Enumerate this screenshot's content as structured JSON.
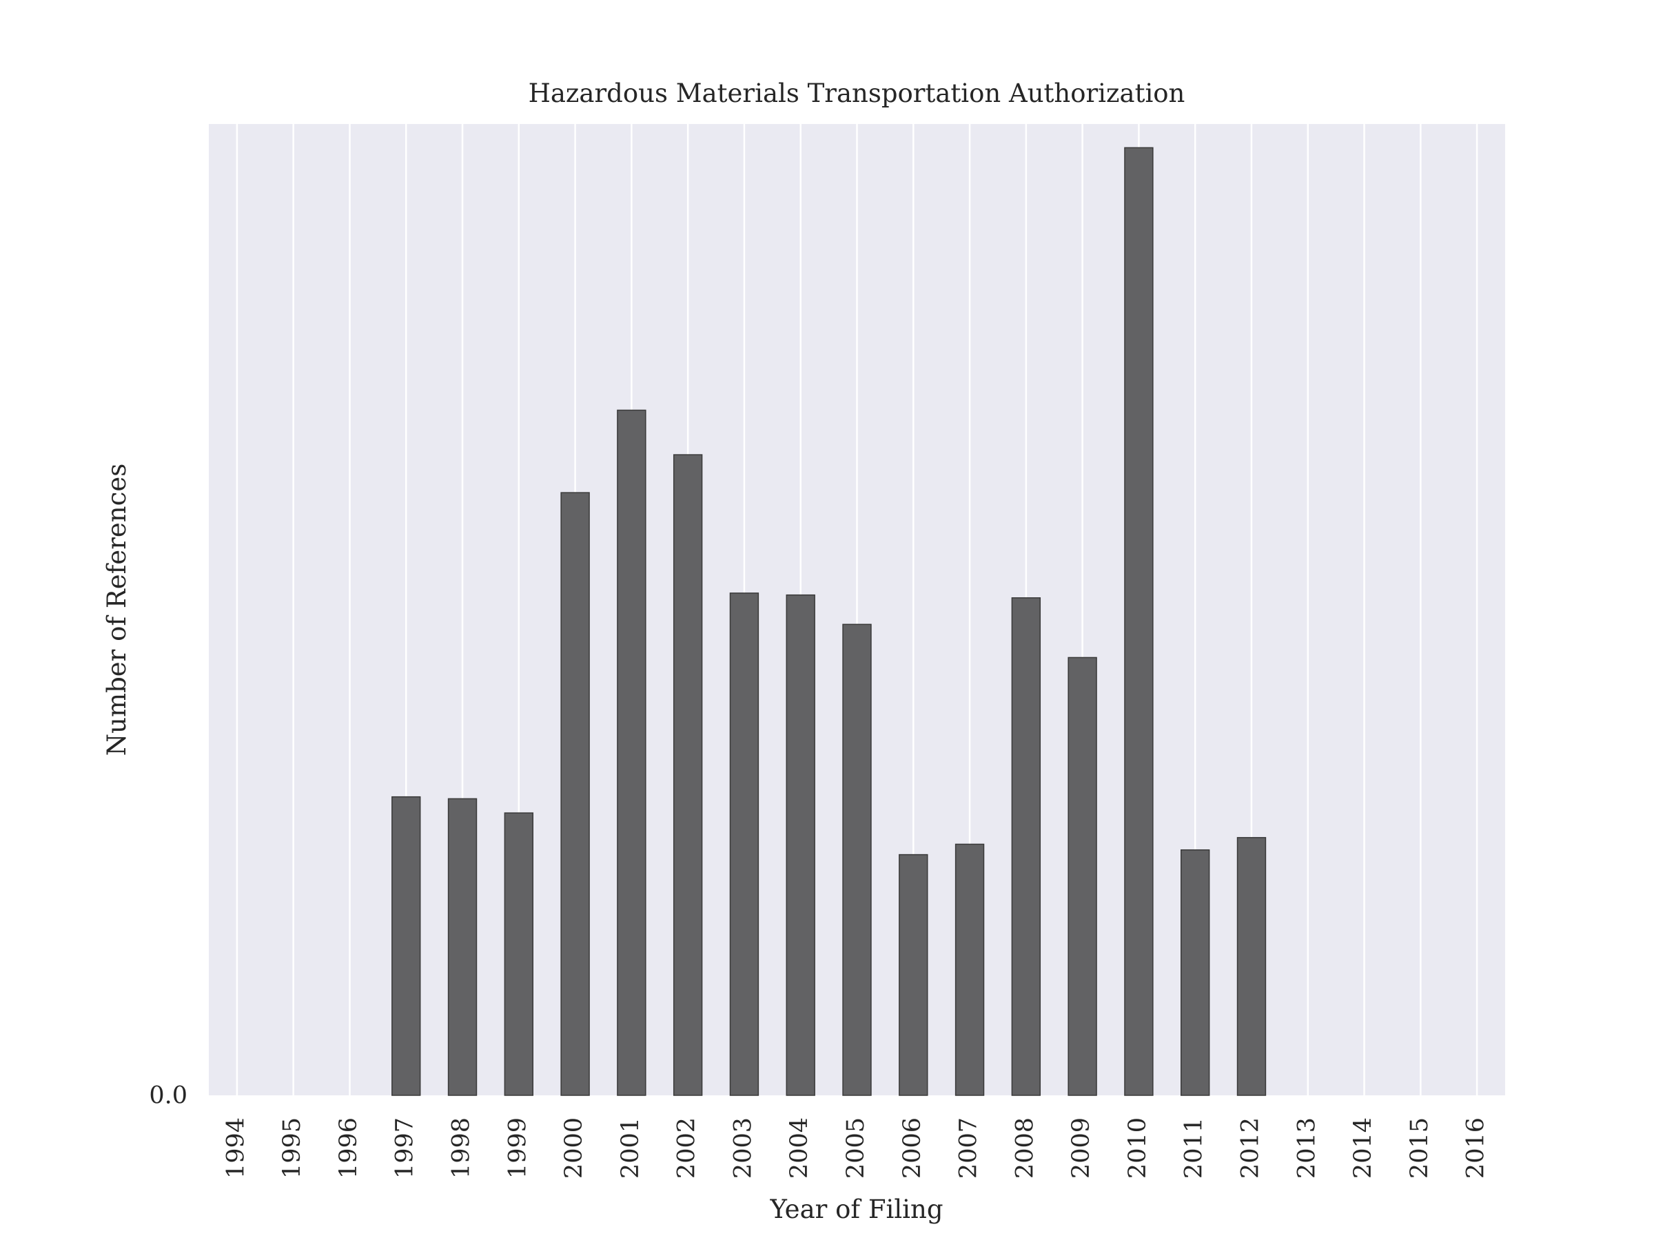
{
  "chart_data": {
    "type": "bar",
    "title": "Hazardous Materials Transportation Authorization",
    "xlabel": "Year of Filing",
    "ylabel": "Number of References",
    "y_tick_label": "0.0",
    "categories": [
      "1994",
      "1995",
      "1996",
      "1997",
      "1998",
      "1999",
      "2000",
      "2001",
      "2002",
      "2003",
      "2004",
      "2005",
      "2006",
      "2007",
      "2008",
      "2009",
      "2010",
      "2011",
      "2012",
      "2013",
      "2014",
      "2015",
      "2016"
    ],
    "values": [
      0,
      0,
      0,
      0.315,
      0.313,
      0.298,
      0.636,
      0.723,
      0.676,
      0.53,
      0.528,
      0.497,
      0.254,
      0.265,
      0.525,
      0.462,
      1.0,
      0.259,
      0.272,
      0,
      0,
      0,
      0
    ],
    "ylim": [
      0,
      1.025
    ],
    "grid": "vertical",
    "colors": {
      "bar": "#626264",
      "bar_edge": "#3a3a3a",
      "plot_background": "#eaeaf2",
      "grid": "#ffffff"
    }
  }
}
